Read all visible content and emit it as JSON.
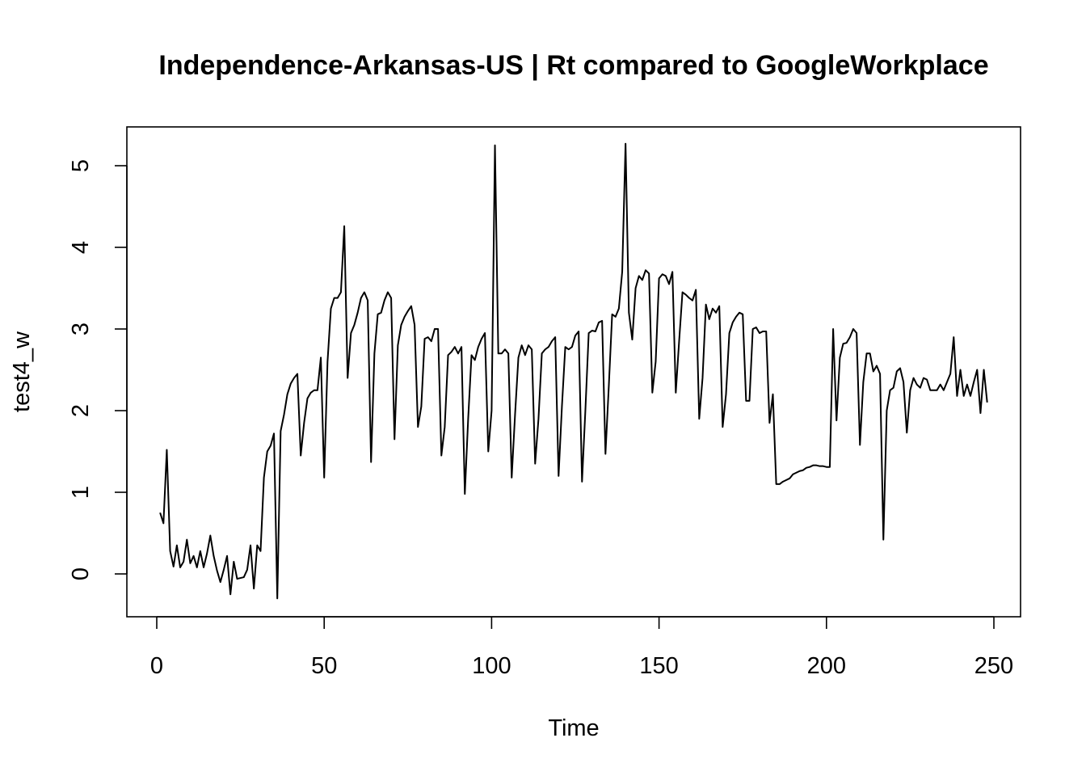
{
  "chart_data": {
    "type": "line",
    "title": "Independence-Arkansas-US | Rt compared to GoogleWorkplace",
    "xlabel": "Time",
    "ylabel": "test4_w",
    "xlim": [
      1,
      248
    ],
    "ylim": [
      -0.3,
      5.3
    ],
    "x_ticks": [
      0,
      50,
      100,
      150,
      200,
      250
    ],
    "y_ticks": [
      0,
      1,
      2,
      3,
      4,
      5
    ],
    "grid": false,
    "legend": "none",
    "line_color": "#000000",
    "series": [
      {
        "x_start": 1,
        "values": [
          0.75,
          0.62,
          1.52,
          0.28,
          0.09,
          0.35,
          0.08,
          0.15,
          0.42,
          0.13,
          0.22,
          0.08,
          0.28,
          0.08,
          0.25,
          0.47,
          0.22,
          0.04,
          -0.1,
          0.05,
          0.22,
          -0.25,
          0.15,
          -0.06,
          -0.05,
          -0.04,
          0.05,
          0.35,
          -0.18,
          0.35,
          0.28,
          1.18,
          1.5,
          1.57,
          1.72,
          -0.3,
          1.75,
          1.95,
          2.2,
          2.33,
          2.4,
          2.45,
          1.45,
          1.85,
          2.15,
          2.22,
          2.25,
          2.25,
          2.65,
          1.18,
          2.6,
          3.25,
          3.38,
          3.38,
          3.45,
          4.26,
          2.4,
          2.95,
          3.05,
          3.2,
          3.38,
          3.45,
          3.35,
          1.37,
          2.7,
          3.18,
          3.2,
          3.35,
          3.45,
          3.38,
          1.65,
          2.8,
          3.05,
          3.15,
          3.22,
          3.28,
          3.05,
          1.8,
          2.05,
          2.88,
          2.9,
          2.85,
          3.0,
          3.0,
          1.45,
          1.8,
          2.68,
          2.72,
          2.78,
          2.7,
          2.78,
          0.98,
          1.9,
          2.68,
          2.62,
          2.78,
          2.88,
          2.95,
          1.5,
          2.0,
          5.25,
          2.7,
          2.7,
          2.75,
          2.7,
          1.18,
          1.95,
          2.65,
          2.8,
          2.68,
          2.8,
          2.75,
          1.35,
          1.9,
          2.7,
          2.75,
          2.78,
          2.85,
          2.9,
          1.2,
          2.05,
          2.78,
          2.75,
          2.78,
          2.92,
          2.97,
          1.13,
          2.0,
          2.95,
          2.98,
          2.97,
          3.08,
          3.1,
          1.47,
          2.3,
          3.18,
          3.15,
          3.25,
          3.7,
          5.27,
          3.2,
          2.87,
          3.5,
          3.65,
          3.6,
          3.72,
          3.68,
          2.22,
          2.6,
          3.62,
          3.67,
          3.65,
          3.55,
          3.7,
          2.22,
          2.85,
          3.45,
          3.42,
          3.38,
          3.35,
          3.48,
          1.9,
          2.4,
          3.3,
          3.12,
          3.25,
          3.2,
          3.28,
          1.8,
          2.2,
          2.95,
          3.08,
          3.15,
          3.2,
          3.18,
          2.12,
          2.12,
          3.0,
          3.02,
          2.95,
          2.97,
          2.97,
          1.85,
          2.2,
          1.1,
          1.1,
          1.13,
          1.15,
          1.17,
          1.22,
          1.24,
          1.26,
          1.27,
          1.3,
          1.31,
          1.33,
          1.33,
          1.32,
          1.32,
          1.31,
          1.31,
          3.0,
          1.88,
          2.65,
          2.82,
          2.83,
          2.9,
          3.0,
          2.95,
          1.58,
          2.35,
          2.7,
          2.7,
          2.48,
          2.55,
          2.45,
          0.42,
          2.0,
          2.25,
          2.28,
          2.48,
          2.52,
          2.35,
          1.73,
          2.25,
          2.4,
          2.32,
          2.28,
          2.4,
          2.38,
          2.25,
          2.25,
          2.25,
          2.32,
          2.25,
          2.35,
          2.45,
          2.9,
          2.18,
          2.5,
          2.18,
          2.32,
          2.18,
          2.35,
          2.5,
          1.97,
          2.5,
          2.1
        ]
      }
    ]
  }
}
